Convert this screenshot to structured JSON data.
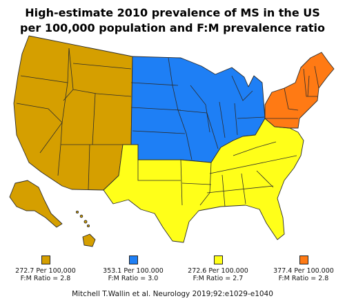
{
  "title": {
    "line1": "High-estimate 2010 prevalence of MS in the US",
    "line2": "per 100,000 population and F:M prevalence ratio"
  },
  "colors": {
    "west": "#d59f00",
    "midwest": "#1e7ff5",
    "south": "#ffff19",
    "northeast": "#ff7a14"
  },
  "legend": [
    {
      "color": "#d59f00",
      "line1": "272.7 Per 100,000",
      "line2": "F:M Ratio = 2.8"
    },
    {
      "color": "#1e7ff5",
      "line1": "353.1 Per 100.000",
      "line2": "F:M Ratio = 3.0"
    },
    {
      "color": "#ffff19",
      "line1": "272.6 Per 100.000",
      "line2": "F:M Ratio = 2.7"
    },
    {
      "color": "#ff7a14",
      "line1": "377.4 Per 100.000",
      "line2": "F:M Ratio = 2.8"
    }
  ],
  "citation": "Mitchell T.Wallin et al. Neurology 2019;92:e1029-e1040"
}
